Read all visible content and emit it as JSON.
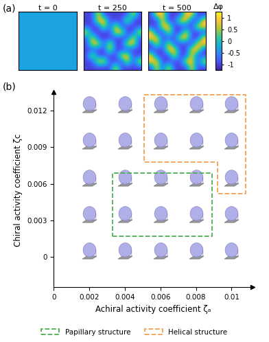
{
  "chart_data": [
    {
      "type": "heatmap",
      "annotation": "(a)",
      "title": "t = 0",
      "tick_labels": false,
      "clim": [
        -1.25,
        1.25
      ],
      "cells": [
        [
          -0.3,
          -0.3,
          -0.3,
          -0.3,
          -0.3,
          -0.3,
          -0.3,
          -0.3,
          -0.3,
          -0.3
        ],
        [
          -0.3,
          -0.3,
          -0.3,
          -0.3,
          -0.3,
          -0.3,
          -0.3,
          -0.3,
          -0.3,
          -0.3
        ],
        [
          -0.3,
          -0.3,
          -0.3,
          -0.3,
          -0.3,
          -0.3,
          -0.3,
          -0.3,
          -0.3,
          -0.3
        ],
        [
          -0.3,
          -0.3,
          -0.3,
          -0.3,
          -0.3,
          -0.3,
          -0.3,
          -0.3,
          -0.3,
          -0.3
        ],
        [
          -0.3,
          -0.3,
          -0.3,
          -0.3,
          -0.3,
          -0.3,
          -0.3,
          -0.3,
          -0.3,
          -0.3
        ],
        [
          -0.3,
          -0.3,
          -0.3,
          -0.3,
          -0.3,
          -0.3,
          -0.3,
          -0.3,
          -0.3,
          -0.3
        ],
        [
          -0.3,
          -0.3,
          -0.3,
          -0.3,
          -0.3,
          -0.3,
          -0.3,
          -0.3,
          -0.3,
          -0.3
        ],
        [
          -0.3,
          -0.3,
          -0.3,
          -0.3,
          -0.3,
          -0.3,
          -0.3,
          -0.3,
          -0.3,
          -0.3
        ],
        [
          -0.3,
          -0.3,
          -0.3,
          -0.3,
          -0.3,
          -0.3,
          -0.3,
          -0.3,
          -0.3,
          -0.3
        ],
        [
          -0.3,
          -0.3,
          -0.3,
          -0.3,
          -0.3,
          -0.3,
          -0.3,
          -0.3,
          -0.3,
          -0.3
        ]
      ]
    },
    {
      "type": "heatmap",
      "title": "t = 250",
      "tick_labels": false,
      "clim": [
        -1.25,
        1.25
      ],
      "cells": [
        [
          -1,
          -1,
          1,
          -1,
          -1,
          -1,
          -1,
          -1,
          1,
          -1
        ],
        [
          -1,
          -1,
          1,
          1,
          -1,
          -1,
          -1,
          1,
          -1,
          -1
        ],
        [
          -1,
          -1,
          -1,
          1,
          -1,
          1,
          -1,
          -1,
          -1,
          -1
        ],
        [
          1,
          -1,
          -1,
          -1,
          -1,
          1,
          1,
          -1,
          -1,
          1
        ],
        [
          -1,
          1,
          -1,
          -1,
          -1,
          -1,
          -1,
          -1,
          1,
          -1
        ],
        [
          -1,
          1,
          1,
          -1,
          1,
          -1,
          -1,
          1,
          1,
          -1
        ],
        [
          -1,
          -1,
          -1,
          -1,
          1,
          -1,
          -1,
          -1,
          -1,
          -1
        ],
        [
          -1,
          1,
          -1,
          -1,
          -1,
          -1,
          1,
          1,
          -1,
          -1
        ],
        [
          -1,
          -1,
          1,
          1,
          -1,
          -1,
          -1,
          1,
          -1,
          1
        ],
        [
          -1,
          -1,
          -1,
          -1,
          -1,
          1,
          -1,
          -1,
          -1,
          -1
        ]
      ]
    },
    {
      "type": "heatmap",
      "title": "t = 500",
      "tick_labels": false,
      "clim": [
        -1.25,
        1.25
      ],
      "colorbar": {
        "label": "Δφ",
        "range": [
          -1.25,
          1.25
        ],
        "ticks": [
          -1,
          -0.5,
          0,
          0.5,
          1
        ]
      },
      "cells": [
        [
          -1,
          1,
          1,
          -1,
          -1,
          -1,
          1,
          1,
          -1,
          -1
        ],
        [
          -1,
          -1,
          1,
          -1,
          -1,
          1,
          1,
          -1,
          -1,
          1
        ],
        [
          -1,
          -1,
          1,
          1,
          -1,
          -1,
          -1,
          -1,
          1,
          1
        ],
        [
          1,
          -1,
          -1,
          1,
          -1,
          -1,
          1,
          -1,
          -1,
          -1
        ],
        [
          1,
          1,
          -1,
          -1,
          -1,
          1,
          1,
          -1,
          -1,
          1
        ],
        [
          -1,
          1,
          -1,
          1,
          -1,
          -1,
          -1,
          -1,
          1,
          1
        ],
        [
          -1,
          -1,
          -1,
          1,
          1,
          -1,
          -1,
          1,
          1,
          -1
        ],
        [
          1,
          -1,
          -1,
          -1,
          1,
          -1,
          -1,
          1,
          -1,
          -1
        ],
        [
          1,
          1,
          -1,
          -1,
          -1,
          -1,
          1,
          1,
          -1,
          1
        ],
        [
          -1,
          1,
          -1,
          1,
          -1,
          -1,
          -1,
          1,
          -1,
          -1
        ]
      ]
    },
    {
      "type": "scatter",
      "annotation": "(b)",
      "x_label": "Achiral activity coefficient ζₐ",
      "y_label": "Chiral activity coefficient ζc",
      "xlim": [
        0,
        0.0112
      ],
      "ylim": [
        -0.0025,
        0.0135
      ],
      "xticks": [
        0,
        0.002,
        0.004,
        0.006,
        0.008,
        0.01
      ],
      "yticks": [
        0,
        0.003,
        0.006,
        0.009,
        0.012
      ],
      "x": [
        0.002,
        0.004,
        0.006,
        0.008,
        0.01,
        0.002,
        0.004,
        0.006,
        0.008,
        0.01,
        0.002,
        0.004,
        0.006,
        0.008,
        0.01,
        0.002,
        0.004,
        0.006,
        0.008,
        0.01,
        0.002,
        0.004,
        0.006,
        0.008,
        0.01
      ],
      "y": [
        0,
        0,
        0,
        0,
        0,
        0.003,
        0.003,
        0.003,
        0.003,
        0.003,
        0.006,
        0.006,
        0.006,
        0.006,
        0.006,
        0.009,
        0.009,
        0.009,
        0.009,
        0.009,
        0.012,
        0.012,
        0.012,
        0.012,
        0.012
      ],
      "color": "#a9a6e6",
      "legend": "lower center",
      "regions": [
        {
          "name": "Papillary structure",
          "color": "#4caf50",
          "x": [
            0.0033,
            0.0089,
            0.0089,
            0.0033
          ],
          "y": [
            0.0017,
            0.0017,
            0.0069,
            0.0069
          ]
        },
        {
          "name": "Helical structure",
          "color": "#f0a050",
          "x": [
            0.0051,
            0.0108,
            0.0108,
            0.0092,
            0.0092,
            0.0051
          ],
          "y": [
            0.0133,
            0.0133,
            0.0052,
            0.0052,
            0.0078,
            0.0078
          ]
        }
      ]
    }
  ]
}
